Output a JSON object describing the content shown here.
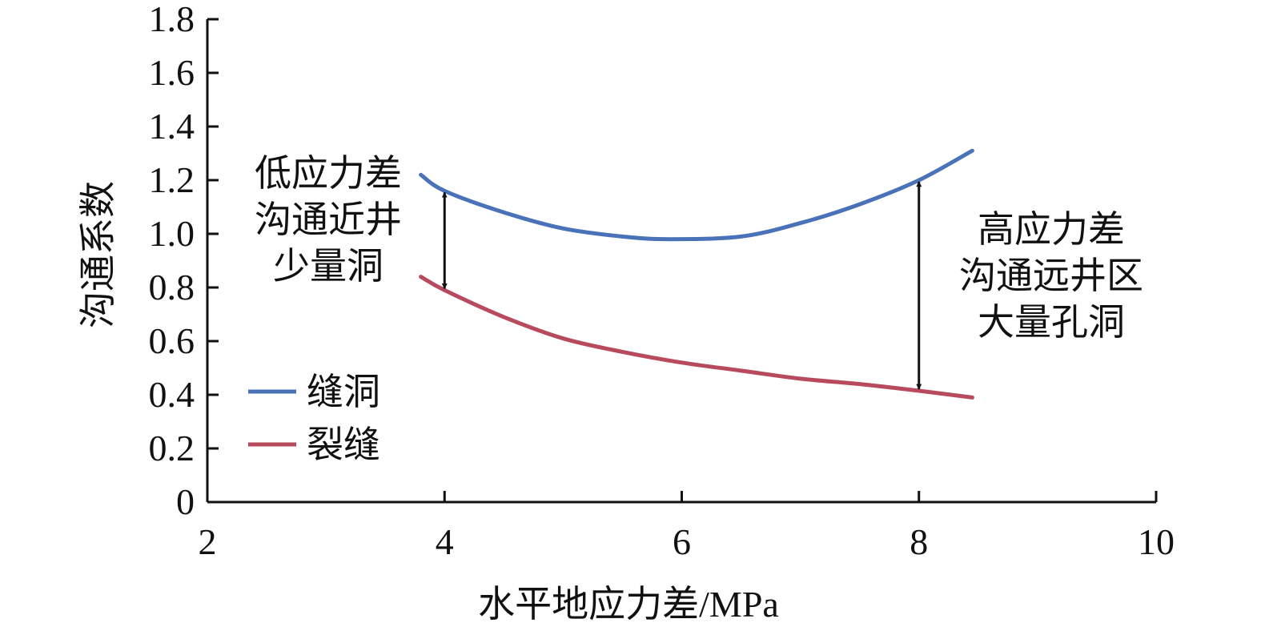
{
  "chart_data": {
    "type": "line",
    "xlabel": "水平地应力差/MPa",
    "ylabel": "沟通系数",
    "xlim": [
      2,
      10
    ],
    "ylim": [
      0,
      1.8
    ],
    "x_ticks": [
      "2",
      "4",
      "6",
      "8",
      "10"
    ],
    "y_ticks": [
      "0",
      "0.2",
      "0.4",
      "0.6",
      "0.8",
      "1.0",
      "1.2",
      "1.4",
      "1.6",
      "1.8"
    ],
    "grid": false,
    "legend_position": "bottom-left",
    "series": [
      {
        "name": "缝洞",
        "color": "#4a72b8",
        "points": [
          {
            "x": 3.8,
            "y": 1.22
          },
          {
            "x": 4.0,
            "y": 1.16
          },
          {
            "x": 4.5,
            "y": 1.08
          },
          {
            "x": 5.0,
            "y": 1.02
          },
          {
            "x": 5.5,
            "y": 0.99
          },
          {
            "x": 5.9,
            "y": 0.98
          },
          {
            "x": 6.5,
            "y": 0.99
          },
          {
            "x": 7.0,
            "y": 1.04
          },
          {
            "x": 7.5,
            "y": 1.11
          },
          {
            "x": 8.0,
            "y": 1.2
          },
          {
            "x": 8.45,
            "y": 1.31
          }
        ]
      },
      {
        "name": "裂缝",
        "color": "#b84a5e",
        "points": [
          {
            "x": 3.8,
            "y": 0.84
          },
          {
            "x": 4.0,
            "y": 0.79
          },
          {
            "x": 4.5,
            "y": 0.69
          },
          {
            "x": 5.0,
            "y": 0.61
          },
          {
            "x": 5.5,
            "y": 0.56
          },
          {
            "x": 6.0,
            "y": 0.52
          },
          {
            "x": 6.5,
            "y": 0.49
          },
          {
            "x": 7.0,
            "y": 0.46
          },
          {
            "x": 7.5,
            "y": 0.44
          },
          {
            "x": 8.0,
            "y": 0.415
          },
          {
            "x": 8.45,
            "y": 0.39
          }
        ]
      }
    ],
    "annotations": [
      {
        "text_lines": [
          "低应力差",
          "沟通近井",
          "少量洞"
        ],
        "arrow_x": 4.0,
        "arrow_from_y": 1.16,
        "arrow_to_y": 0.79
      },
      {
        "text_lines": [
          "高应力差",
          "沟通远井区",
          "大量孔洞"
        ],
        "arrow_x": 8.0,
        "arrow_from_y": 1.2,
        "arrow_to_y": 0.415
      }
    ]
  }
}
